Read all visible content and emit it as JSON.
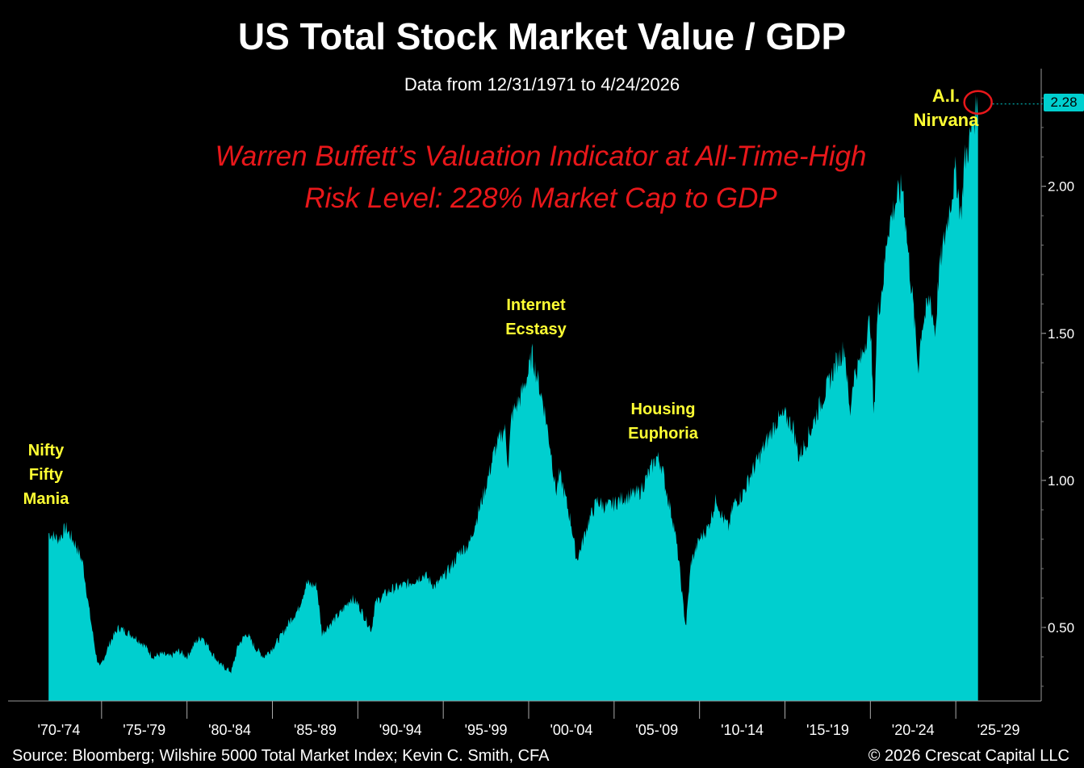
{
  "title": "US Total Stock Market Value / GDP",
  "subtitle": "Data from 12/31/1971 to 4/24/2026",
  "headline": "Warren Buffett’s Valuation Indicator at All-Time-High Risk Level: 228% Market Cap to GDP",
  "annotations": {
    "nifty": "Nifty Fifty Mania",
    "internet": "Internet Ecstasy",
    "housing": "Housing Euphoria",
    "ai": "A.I. Nirvana"
  },
  "last_value_label": "2.28",
  "footer": {
    "source": "Source: Bloomberg; Wilshire 5000 Total Market Index; Kevin C. Smith, CFA",
    "copyright": "© 2026 Crescat Capital LLC"
  },
  "colors": {
    "fill": "#00cfcf",
    "background": "#000000",
    "headline": "#e8171a",
    "annotation": "#ffff33",
    "highlight_circle": "#e8171a"
  },
  "chart_data": {
    "type": "area",
    "title": "US Total Stock Market Value / GDP",
    "subtitle": "Data from 12/31/1971 to 4/24/2026",
    "xlabel": "",
    "ylabel": "",
    "xlim": [
      1970,
      2030
    ],
    "ylim": [
      0.25,
      2.4
    ],
    "y_ticks": [
      0.5,
      1.0,
      1.5,
      2.0
    ],
    "y_tick_labels": [
      "0.50",
      "1.00",
      "1.50",
      "2.00"
    ],
    "x_tick_labels": [
      "'70-'74",
      "'75-'79",
      "'80-'84",
      "'85-'89",
      "'90-'94",
      "'95-'99",
      "'00-'04",
      "'05-'09",
      "'10-'14",
      "'15-'19",
      "'20-'24",
      "'25-'29"
    ],
    "x_tick_periods": [
      [
        1970,
        1975
      ],
      [
        1975,
        1980
      ],
      [
        1980,
        1985
      ],
      [
        1985,
        1990
      ],
      [
        1990,
        1995
      ],
      [
        1995,
        2000
      ],
      [
        2000,
        2005
      ],
      [
        2005,
        2010
      ],
      [
        2010,
        2015
      ],
      [
        2015,
        2020
      ],
      [
        2020,
        2025
      ],
      [
        2025,
        2030
      ]
    ],
    "grid": false,
    "series": [
      {
        "x": [
          1971.9,
          1972.5,
          1972.9,
          1973.5,
          1973.9,
          1974.3,
          1974.7,
          1974.9,
          1975.5,
          1976.0,
          1976.9,
          1977.5,
          1978.0,
          1978.5,
          1979.0,
          1979.5,
          1980.0,
          1980.5,
          1980.9,
          1981.5,
          1982.0,
          1982.6,
          1983.0,
          1983.5,
          1984.0,
          1984.5,
          1985.0,
          1985.5,
          1986.0,
          1986.5,
          1987.0,
          1987.6,
          1987.9,
          1988.5,
          1989.0,
          1989.6,
          1990.0,
          1990.8,
          1991.0,
          1991.5,
          1992.0,
          1993.0,
          1993.9,
          1994.5,
          1995.0,
          1995.5,
          1996.0,
          1996.5,
          1997.0,
          1997.5,
          1998.0,
          1998.6,
          1998.8,
          1999.0,
          1999.5,
          2000.0,
          2000.2,
          2000.5,
          2000.9,
          2001.3,
          2001.6,
          2001.8,
          2002.0,
          2002.5,
          2002.8,
          2003.0,
          2003.5,
          2004.0,
          2004.5,
          2005.0,
          2005.5,
          2006.0,
          2006.5,
          2007.0,
          2007.5,
          2007.8,
          2008.0,
          2008.5,
          2008.8,
          2009.0,
          2009.2,
          2009.5,
          2010.0,
          2010.5,
          2011.0,
          2011.3,
          2011.7,
          2012.0,
          2012.5,
          2013.0,
          2013.5,
          2014.0,
          2014.5,
          2015.0,
          2015.5,
          2015.8,
          2016.0,
          2016.5,
          2017.0,
          2017.5,
          2018.0,
          2018.5,
          2018.8,
          2019.0,
          2019.5,
          2020.0,
          2020.2,
          2020.4,
          2020.8,
          2021.0,
          2021.5,
          2021.9,
          2022.2,
          2022.5,
          2022.8,
          2023.0,
          2023.5,
          2023.8,
          2024.0,
          2024.5,
          2025.0,
          2025.3,
          2025.5,
          2025.8,
          2026.0,
          2026.3
        ],
        "y": [
          0.82,
          0.8,
          0.84,
          0.78,
          0.72,
          0.55,
          0.4,
          0.36,
          0.45,
          0.5,
          0.47,
          0.44,
          0.4,
          0.41,
          0.4,
          0.42,
          0.4,
          0.45,
          0.47,
          0.41,
          0.37,
          0.35,
          0.44,
          0.48,
          0.43,
          0.4,
          0.43,
          0.47,
          0.52,
          0.56,
          0.65,
          0.64,
          0.48,
          0.52,
          0.55,
          0.6,
          0.58,
          0.49,
          0.58,
          0.61,
          0.63,
          0.65,
          0.68,
          0.64,
          0.67,
          0.71,
          0.76,
          0.78,
          0.88,
          0.98,
          1.1,
          1.18,
          1.05,
          1.22,
          1.28,
          1.37,
          1.43,
          1.35,
          1.25,
          1.1,
          0.96,
          1.02,
          0.98,
          0.85,
          0.73,
          0.76,
          0.86,
          0.93,
          0.91,
          0.92,
          0.94,
          0.95,
          0.96,
          1.02,
          1.08,
          1.05,
          0.98,
          0.85,
          0.72,
          0.6,
          0.5,
          0.72,
          0.8,
          0.84,
          0.94,
          0.88,
          0.84,
          0.92,
          0.95,
          1.02,
          1.08,
          1.14,
          1.2,
          1.22,
          1.18,
          1.08,
          1.1,
          1.17,
          1.25,
          1.32,
          1.4,
          1.45,
          1.22,
          1.35,
          1.42,
          1.55,
          1.2,
          1.55,
          1.7,
          1.85,
          1.95,
          2.0,
          1.78,
          1.6,
          1.38,
          1.52,
          1.62,
          1.5,
          1.7,
          1.88,
          2.05,
          1.9,
          2.08,
          2.15,
          2.22,
          2.28
        ]
      }
    ],
    "annotations": [
      "Nifty Fifty Mania",
      "Internet Ecstasy",
      "Housing Euphoria",
      "A.I. Nirvana"
    ],
    "last_value": 2.28
  }
}
